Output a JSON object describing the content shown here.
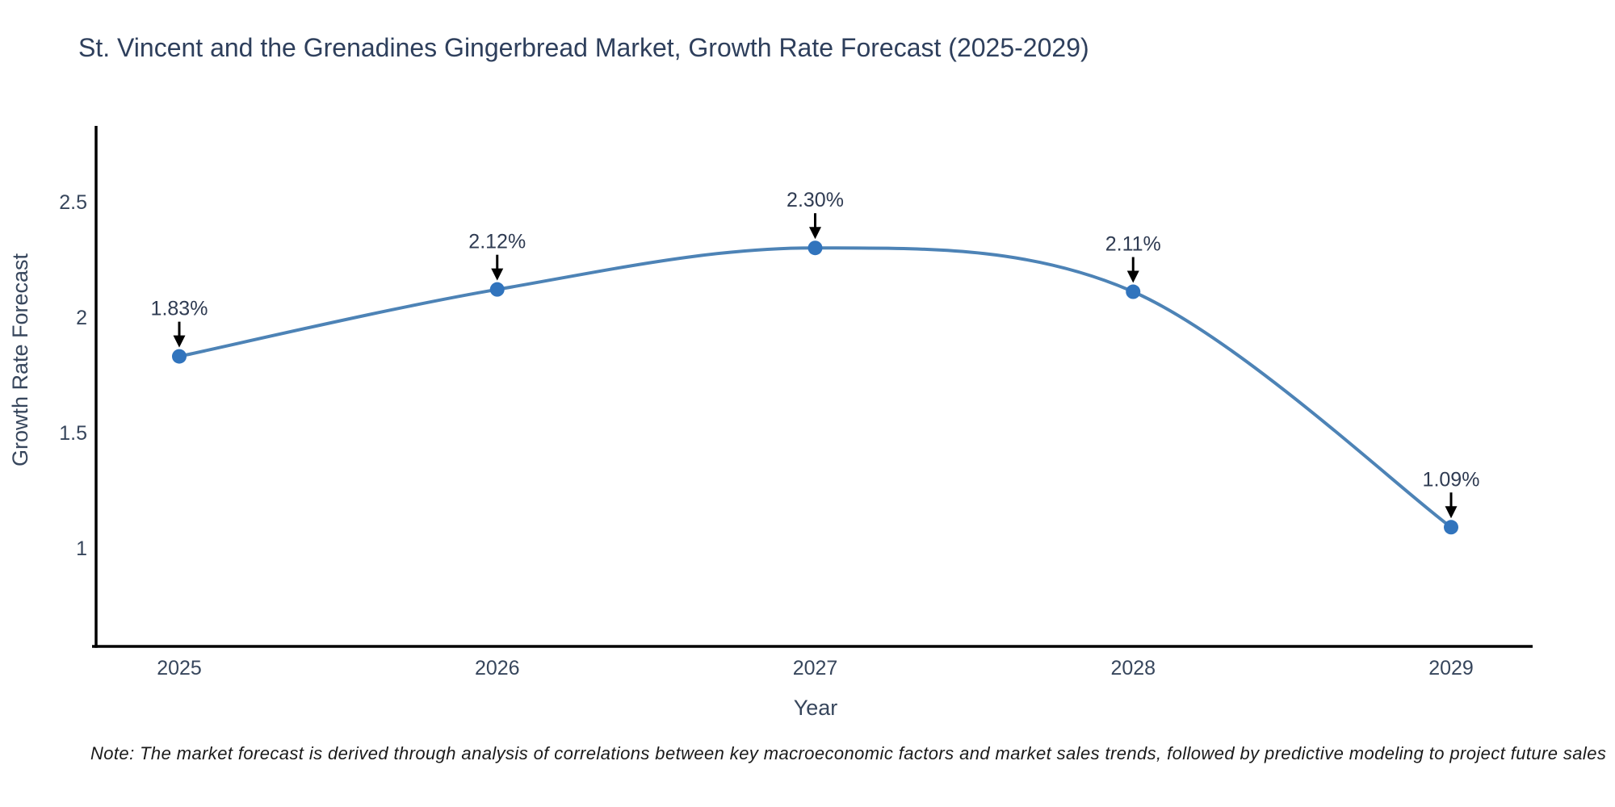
{
  "title": "St. Vincent and the Grenadines Gingerbread Market, Growth Rate Forecast (2025-2029)",
  "note": "Note: The market forecast is derived through analysis of correlations between key macroeconomic factors and market sales trends, followed by predictive modeling to project future sales",
  "chart_data": {
    "type": "line",
    "title": "St. Vincent and the Grenadines Gingerbread Market, Growth Rate Forecast (2025-2029)",
    "xlabel": "Year",
    "ylabel": "Growth Rate Forecast",
    "x": [
      2025,
      2026,
      2027,
      2028,
      2029
    ],
    "series": [
      {
        "name": "Growth Rate Forecast",
        "values": [
          1.83,
          2.12,
          2.3,
          2.11,
          1.09
        ]
      }
    ],
    "point_labels": [
      "1.83%",
      "2.12%",
      "2.30%",
      "2.11%",
      "1.09%"
    ],
    "yticks": [
      2.5,
      2,
      1.5,
      1
    ],
    "ylim": [
      0.57,
      2.85
    ],
    "grid": false,
    "legend": false,
    "curve": "spline",
    "annotation_style": "label-above-with-down-arrow",
    "colors": {
      "line": "#4d83b6",
      "marker": "#3174bd",
      "axis": "#000000",
      "arrow": "#000000",
      "title_text": "#2e3f5c",
      "tick_text": "#37465c",
      "note_text": "#1a1a1a",
      "background": "#ffffff"
    }
  }
}
